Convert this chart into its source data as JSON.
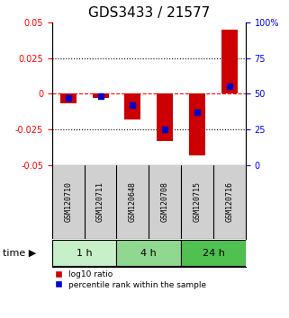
{
  "title": "GDS3433 / 21577",
  "samples": [
    "GSM120710",
    "GSM120711",
    "GSM120648",
    "GSM120708",
    "GSM120715",
    "GSM120716"
  ],
  "log10_ratio": [
    -0.007,
    -0.003,
    -0.018,
    -0.033,
    -0.043,
    0.045
  ],
  "percentile_rank": [
    47,
    48,
    42,
    25,
    37,
    55
  ],
  "ylim_left": [
    -0.05,
    0.05
  ],
  "ylim_right": [
    0,
    100
  ],
  "yticks_left": [
    -0.05,
    -0.025,
    0,
    0.025,
    0.05
  ],
  "ytick_labels_left": [
    "-0.05",
    "-0.025",
    "0",
    "0.025",
    "0.05"
  ],
  "yticks_right": [
    0,
    25,
    50,
    75,
    100
  ],
  "ytick_labels_right": [
    "0",
    "25",
    "50",
    "75",
    "100%"
  ],
  "hlines_dotted": [
    0.025,
    -0.025
  ],
  "hline_dashed": 0,
  "time_groups": [
    {
      "label": "1 h",
      "samples": [
        0,
        1
      ],
      "color": "#c8f0c8"
    },
    {
      "label": "4 h",
      "samples": [
        2,
        3
      ],
      "color": "#90d890"
    },
    {
      "label": "24 h",
      "samples": [
        4,
        5
      ],
      "color": "#50c050"
    }
  ],
  "bar_color": "#cc0000",
  "blue_color": "#0000cc",
  "bar_width": 0.5,
  "background_color": "#ffffff",
  "plot_bg": "#ffffff",
  "label_area_bg": "#d0d0d0",
  "time_label": "time",
  "legend_items": [
    "log10 ratio",
    "percentile rank within the sample"
  ],
  "title_fontsize": 11,
  "tick_fontsize": 7,
  "sample_fontsize": 6,
  "time_fontsize": 8,
  "legend_fontsize": 6.5
}
